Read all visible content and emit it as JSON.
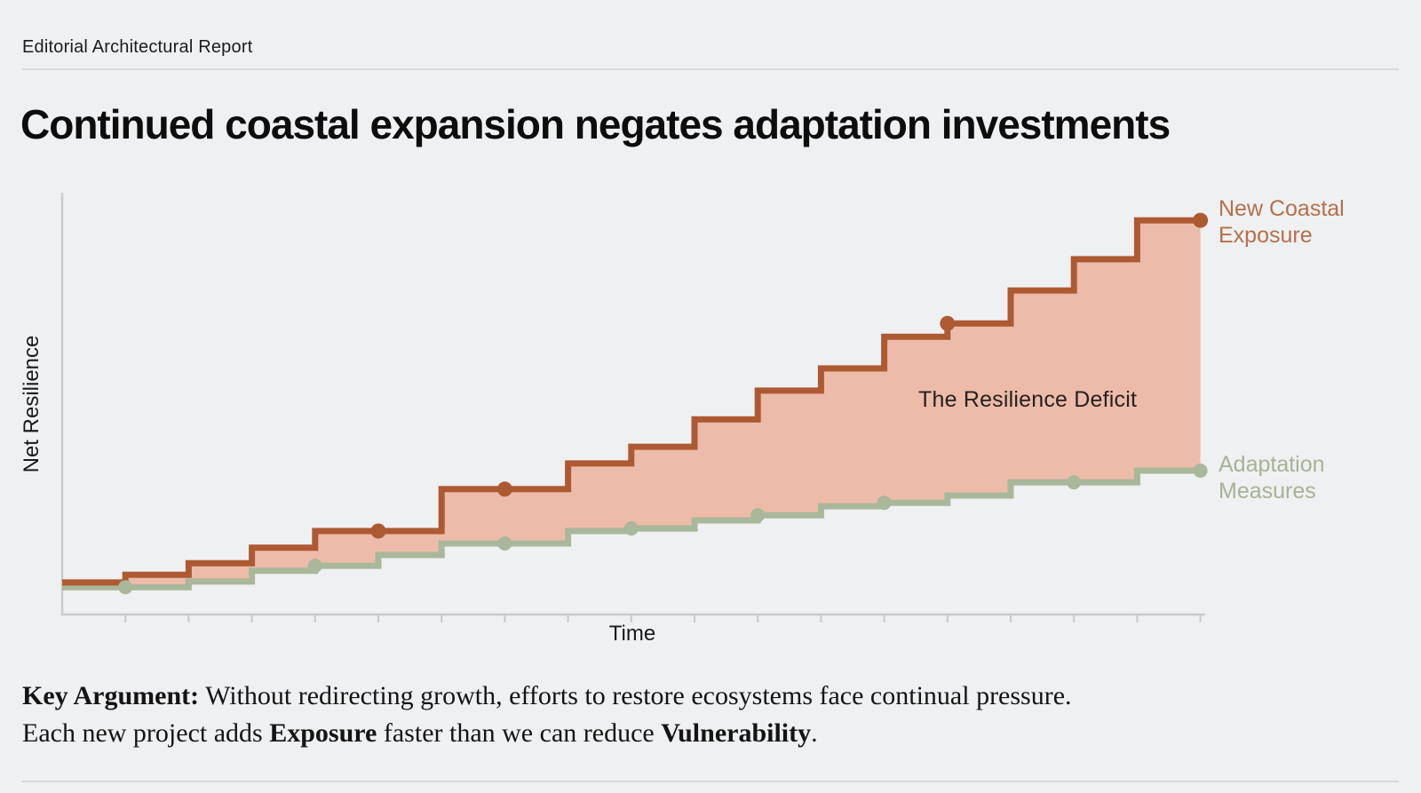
{
  "header": {
    "kicker": "Editorial Architectural Report",
    "title": "Continued coastal expansion negates adaptation investments"
  },
  "chart_data": {
    "type": "step-line",
    "title": "",
    "xlabel": "Time",
    "ylabel": "Net Resilience",
    "x": [
      0,
      1,
      2,
      3,
      4,
      5,
      6,
      7,
      8,
      9,
      10,
      11,
      12,
      13,
      14,
      15,
      16,
      17,
      18
    ],
    "x_tick_count": 18,
    "x_tick_labels": "none",
    "ylim": [
      0,
      100
    ],
    "y_tick_labels": "none",
    "grid": false,
    "legend_position": "right-of-line-ends",
    "series": [
      {
        "name": "New Coastal Exposure",
        "color": "#ad5a33",
        "values": [
          7.5,
          9.3,
          12.0,
          15.6,
          19.5,
          19.5,
          29.3,
          29.3,
          35.3,
          39.2,
          45.6,
          52.3,
          57.5,
          64.9,
          68.0,
          75.7,
          83.0,
          92.1,
          92.1
        ],
        "marker_indices": [
          5,
          7,
          14,
          18
        ]
      },
      {
        "name": "Adaptation Measures",
        "color": "#a9b79a",
        "values": [
          6.4,
          6.4,
          7.7,
          10.2,
          11.4,
          13.9,
          16.6,
          16.6,
          19.5,
          20.1,
          22.0,
          23.2,
          25.3,
          26.1,
          27.8,
          30.9,
          30.9,
          33.6,
          33.6
        ],
        "marker_indices": [
          1,
          4,
          7,
          9,
          11,
          13,
          16,
          18
        ]
      }
    ],
    "area_label": "The Resilience Deficit",
    "area_fill": "#ecb7a5"
  },
  "key_argument": {
    "lead": "Key Argument:",
    "line1": " Without redirecting growth, efforts to restore ecosystems face continual pressure.",
    "line2_pre": "Each new project adds ",
    "line2_bold1": "Exposure",
    "line2_mid": " faster than we can reduce ",
    "line2_bold2": "Vulnerability",
    "line2_end": "."
  },
  "colors": {
    "background": "#eff0f2",
    "axis": "#c8cbce",
    "exposure_line": "#ad5a33",
    "exposure_label": "#b4714a",
    "adaptation_line": "#a9b79a",
    "adaptation_label": "#a6b295",
    "deficit_fill": "#ecb7a5",
    "ink": "#0d0d0e"
  }
}
